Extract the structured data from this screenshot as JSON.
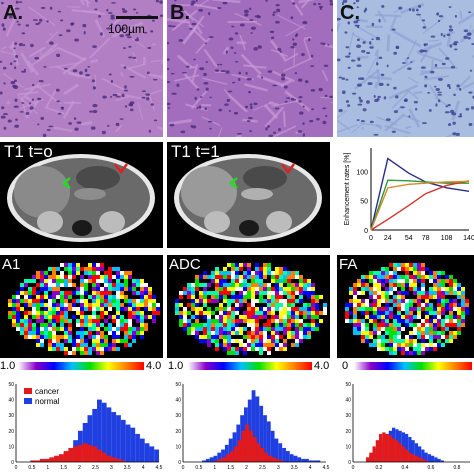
{
  "histology": {
    "panels": [
      {
        "label": "A.",
        "stain_color": "#b27fc4"
      },
      {
        "label": "B.",
        "stain_color": "#a36dbd"
      },
      {
        "label": "C.",
        "stain_color": "#a9bde0"
      }
    ],
    "scalebar_label": "100µm"
  },
  "mri": {
    "panels": [
      {
        "label": "T1 t=o"
      },
      {
        "label": "T1 t=1"
      }
    ]
  },
  "maps": {
    "panels": [
      {
        "label": "A1",
        "colorbar": {
          "min_label": "1.0",
          "max_label": "4.0"
        }
      },
      {
        "label": "ADC",
        "colorbar": {
          "min_label": "1.0",
          "max_label": "4.0"
        }
      },
      {
        "label": "FA",
        "colorbar": {
          "min_label": "0",
          "max_label": ""
        }
      }
    ]
  },
  "chart_data": [
    {
      "type": "line",
      "ylabel": "Enhancement rates [%]",
      "xlabel": "",
      "x": [
        0,
        24,
        54,
        78,
        108,
        140
      ],
      "x_tick_labels": [
        "0",
        "24",
        "54",
        "78",
        "108",
        "140"
      ],
      "y_ticks": [
        0,
        50,
        100
      ],
      "ylim": [
        0,
        140
      ],
      "xlim": [
        0,
        140
      ],
      "series": [
        {
          "color": "#2b2b8a",
          "values": [
            0,
            122,
            97,
            82,
            72,
            66
          ]
        },
        {
          "color": "#2e9a3a",
          "values": [
            0,
            85,
            84,
            82,
            80,
            80
          ]
        },
        {
          "color": "#d2332b",
          "values": [
            0,
            18,
            42,
            62,
            76,
            84
          ]
        },
        {
          "color": "#d68a2a",
          "values": [
            0,
            72,
            78,
            80,
            82,
            83
          ]
        }
      ]
    },
    {
      "type": "bar",
      "legend": [
        {
          "name": "cancer",
          "color": "#e31a1c"
        },
        {
          "name": "normal",
          "color": "#1f3fe0"
        }
      ],
      "legend_placement": "top-left",
      "x_tick_labels": [
        "0",
        "0.5",
        "1",
        "1.5",
        "2",
        "2.5",
        "3",
        "3.5",
        "4",
        "4.5"
      ],
      "xlim": [
        0,
        4.5
      ],
      "y_tick_labels": [
        "0",
        "10",
        "20",
        "30",
        "40",
        "50"
      ],
      "ylim": [
        0,
        50
      ],
      "bin_width": 0.15,
      "series": [
        {
          "name": "normal",
          "bin_start": 0.75,
          "values": [
            1,
            1,
            2,
            3,
            4,
            6,
            9,
            14,
            20,
            25,
            30,
            34,
            40,
            38,
            35,
            32,
            30,
            27,
            24,
            22,
            18,
            15,
            12,
            10,
            8,
            6,
            4,
            3,
            2,
            1
          ]
        },
        {
          "name": "cancer",
          "bin_start": 0.45,
          "values": [
            1,
            1,
            2,
            2,
            3,
            4,
            5,
            7,
            9,
            10,
            11,
            12,
            11,
            10,
            8,
            6,
            4,
            3,
            2,
            1
          ]
        }
      ]
    },
    {
      "type": "bar",
      "x_tick_labels": [
        "0",
        "0.5",
        "1",
        "1.5",
        "2",
        "2.5",
        "3",
        "3.5",
        "4",
        "4.5"
      ],
      "xlim": [
        0,
        4.5
      ],
      "y_tick_labels": [
        "0",
        "10",
        "20",
        "30",
        "40",
        "50"
      ],
      "ylim": [
        0,
        50
      ],
      "bin_width": 0.12,
      "series": [
        {
          "name": "normal",
          "bin_start": 0.6,
          "values": [
            1,
            2,
            3,
            4,
            6,
            8,
            11,
            15,
            19,
            24,
            30,
            35,
            40,
            46,
            42,
            36,
            30,
            26,
            20,
            15,
            12,
            9,
            7,
            5,
            4,
            3,
            2,
            2,
            1,
            1,
            1
          ]
        },
        {
          "name": "cancer",
          "bin_start": 1.0,
          "values": [
            1,
            2,
            3,
            5,
            7,
            10,
            14,
            20,
            24,
            20,
            16,
            12,
            9,
            6,
            4,
            3,
            2,
            1
          ]
        }
      ]
    },
    {
      "type": "bar",
      "x_tick_labels": [
        "0",
        "0.2",
        "0.4",
        "0.6",
        "0.8"
      ],
      "xlim": [
        0,
        0.9
      ],
      "y_tick_labels": [
        "0",
        "10",
        "20",
        "30",
        "40",
        "50"
      ],
      "ylim": [
        0,
        50
      ],
      "bin_width": 0.025,
      "series": [
        {
          "name": "normal",
          "bin_start": 0.1,
          "values": [
            2,
            4,
            6,
            9,
            12,
            15,
            18,
            20,
            22,
            21,
            20,
            19,
            18,
            16,
            14,
            12,
            10,
            8,
            6,
            5,
            4,
            3,
            2,
            1
          ]
        },
        {
          "name": "cancer",
          "bin_start": 0.1,
          "values": [
            3,
            6,
            10,
            14,
            18,
            19,
            18,
            17,
            15,
            14,
            12,
            10,
            8,
            6,
            5,
            4,
            3,
            2,
            1
          ]
        }
      ]
    }
  ]
}
